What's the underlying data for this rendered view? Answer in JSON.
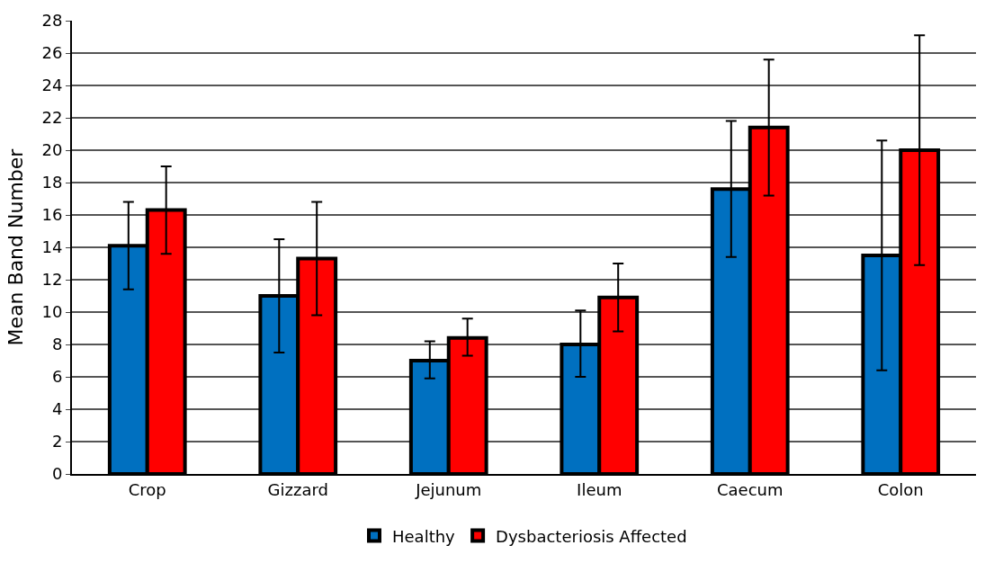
{
  "chart_data": {
    "type": "bar",
    "ylabel": "Mean Band Number",
    "categories": [
      "Crop",
      "Gizzard",
      "Jejunum",
      "Ileum",
      "Caecum",
      "Colon"
    ],
    "series": [
      {
        "name": "Healthy",
        "color": "#0070c0",
        "values": [
          14.1,
          11.0,
          7.0,
          8.0,
          17.6,
          13.5
        ],
        "errors": [
          [
            11.4,
            16.8
          ],
          [
            7.5,
            14.5
          ],
          [
            5.9,
            8.2
          ],
          [
            6.0,
            10.1
          ],
          [
            13.4,
            21.8
          ],
          [
            6.4,
            20.6
          ]
        ]
      },
      {
        "name": "Dysbacteriosis Affected",
        "color": "#ff0000",
        "values": [
          16.3,
          13.3,
          8.4,
          10.9,
          21.4,
          20.0
        ],
        "errors": [
          [
            13.6,
            19.0
          ],
          [
            9.8,
            16.8
          ],
          [
            7.3,
            9.6
          ],
          [
            8.8,
            13.0
          ],
          [
            17.2,
            25.6
          ],
          [
            12.9,
            27.1
          ]
        ]
      }
    ],
    "ylim": [
      0,
      28
    ],
    "yticks": [
      0,
      2,
      4,
      6,
      8,
      10,
      12,
      14,
      16,
      18,
      20,
      22,
      24,
      26,
      28
    ],
    "grid": "y",
    "legend": "bottom"
  }
}
